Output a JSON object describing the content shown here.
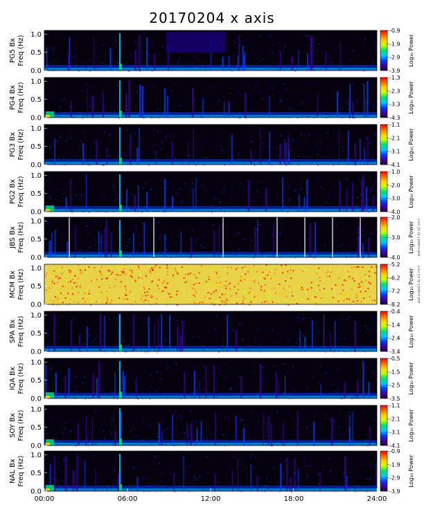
{
  "page": {
    "title": "20170204 x axis"
  },
  "chart_data": {
    "type": "heatmap",
    "title": "20170204 x axis",
    "xlabel": "",
    "x_ticks": [
      "00:00",
      "06:00",
      "12:00",
      "18:00",
      "24:00"
    ],
    "xlim": [
      0,
      24
    ],
    "ylim": [
      0.0,
      1.1
    ],
    "y_ticks": [
      "0.0",
      "0.5",
      "1.0"
    ],
    "colorbar_label": "Log₁₀ Power",
    "panels": [
      {
        "station": "PG5",
        "ylabel_top": "PG5 Bx",
        "ylabel_bottom": "Freq (Hz)",
        "cbar_ticks": [
          "-0.9",
          "-1.9",
          "-2.9",
          "-3.9"
        ],
        "cbar_range": [
          -3.9,
          -0.9
        ]
      },
      {
        "station": "PG4",
        "ylabel_top": "PG4 Bx",
        "ylabel_bottom": "Freq (Hz)",
        "cbar_ticks": [
          "-1.3",
          "-2.3",
          "-3.3",
          "-4.3"
        ],
        "cbar_range": [
          -4.3,
          -1.3
        ]
      },
      {
        "station": "PG3",
        "ylabel_top": "PG3 Bx",
        "ylabel_bottom": "Freq (Hz)",
        "cbar_ticks": [
          "-1.1",
          "-2.1",
          "-3.1",
          "-4.1"
        ],
        "cbar_range": [
          -4.1,
          -1.1
        ]
      },
      {
        "station": "PG2",
        "ylabel_top": "PG2 Bx",
        "ylabel_bottom": "Freq (Hz)",
        "cbar_ticks": [
          "-1.0",
          "-2.0",
          "-3.0",
          "-4.0"
        ],
        "cbar_range": [
          -4.0,
          -1.0
        ]
      },
      {
        "station": "JBS",
        "ylabel_top": "JBS Bx",
        "ylabel_bottom": "Freq (Hz)",
        "cbar_ticks": [
          "-2.0",
          "-3.0",
          "-4.0"
        ],
        "cbar_range": [
          -4.0,
          -2.0
        ],
        "footnote": "and scaled 1 to ±1 ms-s"
      },
      {
        "station": "MCM",
        "ylabel_top": "MCM Bx",
        "ylabel_bottom": "Freq (Hz)",
        "cbar_ticks": [
          "-5.2",
          "-6.2",
          "-7.2",
          "-8.2"
        ],
        "cbar_range": [
          -8.2,
          -5.2
        ],
        "footnote": "and scaled 1 to ±1 ms-s"
      },
      {
        "station": "SPA",
        "ylabel_top": "SPA Bx",
        "ylabel_bottom": "Freq (Hz)",
        "cbar_ticks": [
          "-0.4",
          "-1.4",
          "-2.4",
          "-3.4"
        ],
        "cbar_range": [
          -3.4,
          -0.4
        ]
      },
      {
        "station": "IQA",
        "ylabel_top": "IQA Bx",
        "ylabel_bottom": "Freq (Hz)",
        "cbar_ticks": [
          "-0.5",
          "-1.5",
          "-2.5",
          "-3.5"
        ],
        "cbar_range": [
          -3.5,
          -0.5
        ]
      },
      {
        "station": "SOY",
        "ylabel_top": "SOY Bx",
        "ylabel_bottom": "Freq (Hz)",
        "cbar_ticks": [
          "-1.1",
          "-2.1",
          "-3.1",
          "-4.1"
        ],
        "cbar_range": [
          -4.1,
          -1.1
        ]
      },
      {
        "station": "NAL",
        "ylabel_top": "NAL Bx",
        "ylabel_bottom": "Freq (Hz)",
        "cbar_ticks": [
          "-0.9",
          "-1.9",
          "-2.9",
          "-3.9"
        ],
        "cbar_range": [
          -3.9,
          -0.9
        ]
      }
    ],
    "colormap": [
      "#1a0033",
      "#3d00a8",
      "#0040ff",
      "#00c8ff",
      "#00e070",
      "#c8ff00",
      "#ffd000",
      "#ff6a00",
      "#ff0000"
    ],
    "background_color": "#05010f"
  }
}
